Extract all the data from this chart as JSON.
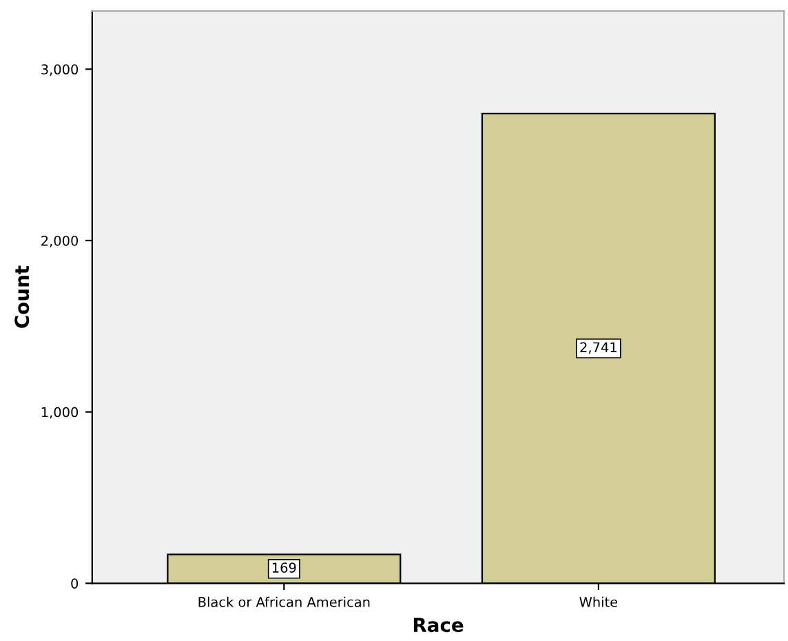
{
  "chart_data": {
    "type": "bar",
    "xlabel": "Race",
    "ylabel": "Count",
    "categories": [
      "Black or African American",
      "White"
    ],
    "values": [
      169,
      2741
    ],
    "value_labels": [
      "169",
      "2,741"
    ],
    "color": "#d3ce97",
    "ylim": [
      0,
      3340
    ],
    "yticks": [
      0,
      {
        "value": 1000,
        "label": "1,000"
      },
      {
        "value": 2000,
        "label": "2,000"
      },
      {
        "value": 3000,
        "label": "3,000"
      }
    ],
    "grid": false
  }
}
